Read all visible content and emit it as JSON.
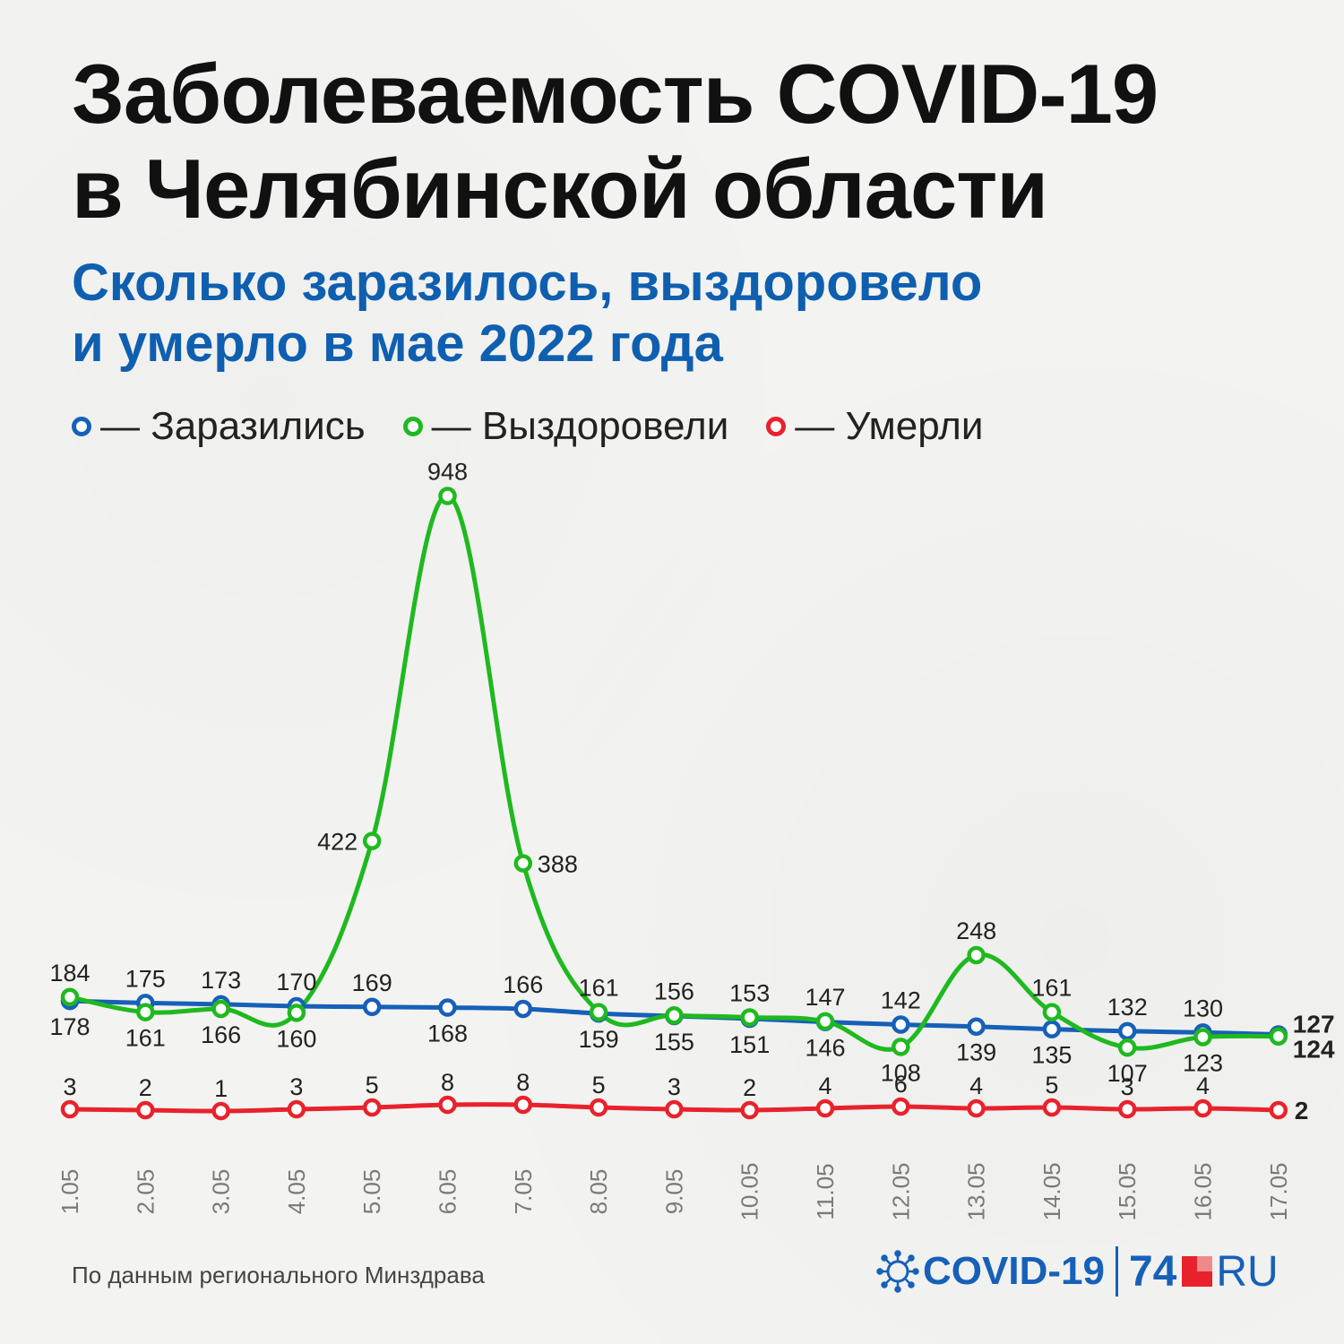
{
  "header": {
    "title_line1": "Заболеваемость COVID-19",
    "title_line2": "в Челябинской области",
    "subtitle_line1": "Сколько заразилось, выздоровело",
    "subtitle_line2": "и умерло в мае 2022 года"
  },
  "legend": {
    "infected": "— Заразились",
    "recovered": "— Выздоровели",
    "died": "— Умерли"
  },
  "footer": {
    "source": "По данным регионального Минздрава",
    "brand_covid": "COVID-19",
    "brand_74": "74",
    "brand_ru": "RU"
  },
  "colors": {
    "infected": "#1660b8",
    "recovered": "#1fb91f",
    "died": "#e8222c"
  },
  "chart_data": {
    "type": "line",
    "categories": [
      "1.05",
      "2.05",
      "3.05",
      "4.05",
      "5.05",
      "6.05",
      "7.05",
      "8.05",
      "9.05",
      "10.05",
      "11.05",
      "12.05",
      "13.05",
      "14.05",
      "15.05",
      "16.05",
      "17.05"
    ],
    "series": [
      {
        "name": "Заразились",
        "values": [
          178,
          175,
          173,
          170,
          169,
          168,
          166,
          159,
          155,
          151,
          146,
          142,
          139,
          135,
          132,
          130,
          127
        ]
      },
      {
        "name": "Выздоровели",
        "values": [
          184,
          161,
          166,
          160,
          422,
          948,
          388,
          161,
          156,
          153,
          147,
          108,
          248,
          161,
          107,
          123,
          124
        ]
      },
      {
        "name": "Умерли",
        "values": [
          3,
          2,
          1,
          3,
          5,
          8,
          8,
          5,
          3,
          2,
          4,
          6,
          4,
          5,
          3,
          4,
          2
        ]
      }
    ],
    "grid": false
  }
}
